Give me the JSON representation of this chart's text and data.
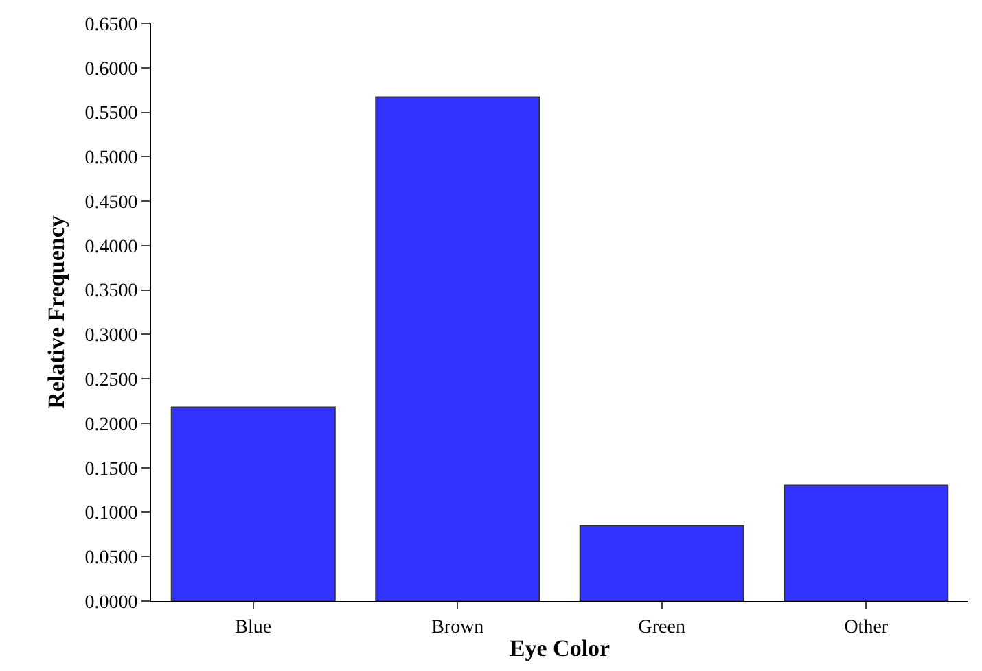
{
  "chart_data": {
    "type": "bar",
    "xlabel": "Eye Color",
    "ylabel": "Relative Frequency",
    "categories": [
      "Blue",
      "Brown",
      "Green",
      "Other"
    ],
    "values": [
      0.218,
      0.567,
      0.085,
      0.13
    ],
    "color": "#3333ff",
    "ylim": [
      0,
      0.65
    ],
    "yticks": [
      {
        "value": 0,
        "label": "0.0000"
      },
      {
        "value": 0.05,
        "label": "0.0500"
      },
      {
        "value": 0.1,
        "label": "0.1000"
      },
      {
        "value": 0.15,
        "label": "0.1500"
      },
      {
        "value": 0.2,
        "label": "0.2000"
      },
      {
        "value": 0.25,
        "label": "0.2500"
      },
      {
        "value": 0.3,
        "label": "0.3000"
      },
      {
        "value": 0.35,
        "label": "0.3500"
      },
      {
        "value": 0.4,
        "label": "0.4000"
      },
      {
        "value": 0.45,
        "label": "0.4500"
      },
      {
        "value": 0.5,
        "label": "0.5000"
      },
      {
        "value": 0.55,
        "label": "0.5500"
      },
      {
        "value": 0.6,
        "label": "0.6000"
      },
      {
        "value": 0.65,
        "label": "0.6500"
      }
    ],
    "data_labels": false
  }
}
